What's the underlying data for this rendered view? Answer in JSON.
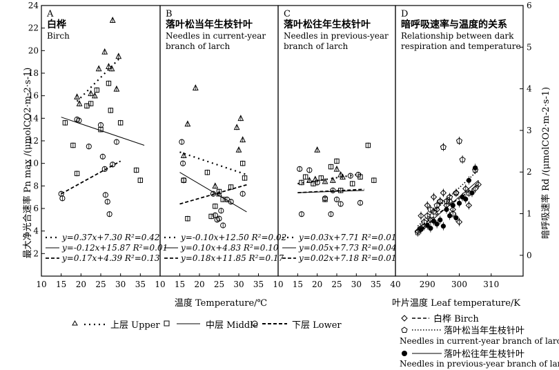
{
  "chart_data": [
    {
      "type": "scatter",
      "letter": "A",
      "title": "白桦",
      "subtitle": [
        "Birch"
      ],
      "xlim": [
        10,
        40
      ],
      "ylim": [
        0,
        24
      ],
      "series": [
        {
          "name": "Upper",
          "marker": "triangle",
          "points": [
            [
              19,
              15.9
            ],
            [
              19.6,
              15.3
            ],
            [
              22.5,
              16.2
            ],
            [
              23.5,
              16
            ],
            [
              24.5,
              18.4
            ],
            [
              26,
              19.9
            ],
            [
              27,
              18.6
            ],
            [
              27.8,
              18.4
            ],
            [
              28,
              22.7
            ],
            [
              29,
              16.6
            ],
            [
              29.5,
              19.5
            ]
          ]
        },
        {
          "name": "Middle",
          "marker": "square",
          "points": [
            [
              16,
              13.6
            ],
            [
              18,
              11.6
            ],
            [
              19,
              9.1
            ],
            [
              21.5,
              15.1
            ],
            [
              22.5,
              15.3
            ],
            [
              24,
              16.5
            ],
            [
              25,
              13
            ],
            [
              27,
              17.1
            ],
            [
              27.5,
              14.7
            ],
            [
              30,
              13.6
            ],
            [
              34,
              9.4
            ],
            [
              35,
              8.5
            ]
          ]
        },
        {
          "name": "Lower",
          "marker": "circle",
          "points": [
            [
              15,
              7.3
            ],
            [
              15.3,
              6.9
            ],
            [
              19,
              13.9
            ],
            [
              19.5,
              13.8
            ],
            [
              22,
              11.5
            ],
            [
              25,
              13.4
            ],
            [
              25.5,
              10.6
            ],
            [
              26,
              9.5
            ],
            [
              26.2,
              7.2
            ],
            [
              26.7,
              6.6
            ],
            [
              27.2,
              5.5
            ],
            [
              28,
              9.9
            ],
            [
              29,
              11.9
            ]
          ]
        }
      ],
      "fits": [
        {
          "series": "Upper",
          "slope": 0.37,
          "intercept": 7.3,
          "r2": 0.42,
          "xrange": [
            19,
            30
          ]
        },
        {
          "series": "Middle",
          "slope": -0.12,
          "intercept": 15.87,
          "r2": 0.01,
          "xrange": [
            15,
            36
          ]
        },
        {
          "series": "Lower",
          "slope": 0.17,
          "intercept": 4.39,
          "r2": 0.13,
          "xrange": [
            15,
            30
          ]
        }
      ]
    },
    {
      "type": "scatter",
      "letter": "B",
      "title": "落叶松当年生枝针叶",
      "subtitle": [
        "Needles in current-year",
        "branch of larch"
      ],
      "xlim": [
        10,
        40
      ],
      "ylim": [
        0,
        24
      ],
      "series": [
        {
          "name": "Upper",
          "marker": "triangle",
          "points": [
            [
              16,
              10.7
            ],
            [
              17,
              13.5
            ],
            [
              19,
              16.7
            ],
            [
              24,
              8
            ],
            [
              25,
              7.3
            ],
            [
              29.5,
              13.2
            ],
            [
              30,
              11.2
            ],
            [
              30.5,
              14
            ],
            [
              31,
              12.1
            ]
          ]
        },
        {
          "name": "Middle",
          "marker": "square",
          "points": [
            [
              16,
              8.5
            ],
            [
              17,
              5.1
            ],
            [
              22,
              9.2
            ],
            [
              23,
              5.3
            ],
            [
              24,
              6.2
            ],
            [
              25,
              7.5
            ],
            [
              26,
              6.8
            ],
            [
              28,
              7.9
            ],
            [
              31,
              10
            ],
            [
              31.5,
              8.7
            ]
          ]
        },
        {
          "name": "Lower",
          "marker": "circle",
          "points": [
            [
              15.5,
              11.9
            ],
            [
              15.8,
              10
            ],
            [
              16,
              8.5
            ],
            [
              23.5,
              7.3
            ],
            [
              24,
              5.4
            ],
            [
              24.5,
              5
            ],
            [
              25,
              5.1
            ],
            [
              25.5,
              5.8
            ],
            [
              26,
              4.5
            ],
            [
              27,
              6.8
            ],
            [
              28,
              6.6
            ],
            [
              31,
              7.3
            ]
          ]
        }
      ],
      "fits": [
        {
          "series": "Upper",
          "slope": -0.1,
          "intercept": 12.5,
          "r2": 0.02,
          "xrange": [
            15,
            32
          ]
        },
        {
          "series": "Middle",
          "slope": 0.1,
          "intercept": 4.83,
          "r2": 0.1,
          "xrange": [
            15,
            32
          ]
        },
        {
          "series": "Lower",
          "slope": 0.18,
          "intercept": 11.85,
          "r2": 0.17,
          "xrange": [
            15,
            32
          ]
        }
      ]
    },
    {
      "type": "scatter",
      "letter": "C",
      "title": "落叶松往年生枝针叶",
      "subtitle": [
        "Needles in previous-year",
        "branch of larch"
      ],
      "xlim": [
        10,
        40
      ],
      "ylim": [
        0,
        24
      ],
      "series": [
        {
          "name": "Upper",
          "marker": "triangle",
          "points": [
            [
              18,
              8.5
            ],
            [
              19.5,
              8.6
            ],
            [
              20,
              11.2
            ],
            [
              22,
              8.4
            ],
            [
              24,
              8.5
            ],
            [
              25,
              9.5
            ],
            [
              26,
              9
            ],
            [
              26.5,
              8.8
            ]
          ]
        },
        {
          "name": "Middle",
          "marker": "square",
          "points": [
            [
              16,
              8.3
            ],
            [
              17,
              8.8
            ],
            [
              19,
              8.2
            ],
            [
              21,
              8.7
            ],
            [
              22,
              6.8
            ],
            [
              23.5,
              9.7
            ],
            [
              25,
              10.2
            ],
            [
              26,
              7.6
            ],
            [
              29,
              8.2
            ],
            [
              31,
              8.8
            ],
            [
              33,
              11.6
            ],
            [
              34.5,
              8.5
            ]
          ]
        },
        {
          "name": "Lower",
          "marker": "circle",
          "points": [
            [
              15.5,
              9.5
            ],
            [
              16,
              5.5
            ],
            [
              18,
              9.4
            ],
            [
              20,
              8.3
            ],
            [
              22,
              6.9
            ],
            [
              23.5,
              5.5
            ],
            [
              24,
              7.6
            ],
            [
              25,
              6.8
            ],
            [
              26,
              6.4
            ],
            [
              28.5,
              8.9
            ],
            [
              30.5,
              9
            ],
            [
              31,
              6.5
            ]
          ]
        }
      ],
      "fits": [
        {
          "series": "Upper",
          "slope": 0.03,
          "intercept": 7.71,
          "r2": 0.01,
          "xrange": [
            15,
            32
          ]
        },
        {
          "series": "Middle",
          "slope": 0.05,
          "intercept": 7.73,
          "r2": 0.04,
          "xrange": [
            15,
            32
          ]
        },
        {
          "series": "Lower",
          "slope": 0.02,
          "intercept": 7.18,
          "r2": 0.01,
          "xrange": [
            15,
            32
          ]
        }
      ]
    },
    {
      "type": "scatter",
      "letter": "D",
      "title": "暗呼吸速率与温度的关系",
      "subtitle": [
        "Relationship between dark",
        "respiration and temperature"
      ],
      "xlim": [
        280,
        320
      ],
      "ylim": [
        -0.5,
        6
      ],
      "series": [
        {
          "name": "白桦 Birch",
          "marker": "diamond",
          "points": [
            [
              287,
              0.58
            ],
            [
              288,
              0.95
            ],
            [
              289,
              0.7
            ],
            [
              290,
              1.2
            ],
            [
              291,
              0.85
            ],
            [
              292,
              1.4
            ],
            [
              293,
              1.1
            ],
            [
              294,
              1.3
            ],
            [
              295,
              1.5
            ],
            [
              296,
              1.2
            ],
            [
              297,
              1.3
            ],
            [
              298,
              1.1
            ],
            [
              299,
              1.5
            ],
            [
              300,
              0.8
            ],
            [
              302,
              1.6
            ],
            [
              303,
              1.2
            ],
            [
              305,
              1.6
            ],
            [
              306,
              1.7
            ]
          ]
        },
        {
          "name": "落叶松当年生枝针叶",
          "marker": "pentagon",
          "points": [
            [
              287,
              0.55
            ],
            [
              288,
              0.65
            ],
            [
              289,
              0.8
            ],
            [
              290,
              0.95
            ],
            [
              291,
              1.1
            ],
            [
              292,
              1.05
            ],
            [
              293,
              1.2
            ],
            [
              294,
              1.3
            ],
            [
              295,
              2.6
            ],
            [
              296,
              1.3
            ],
            [
              297,
              1.4
            ],
            [
              298,
              1.0
            ],
            [
              299,
              1.5
            ],
            [
              300,
              2.75
            ],
            [
              301,
              2.3
            ],
            [
              303,
              1.5
            ],
            [
              305,
              2.05
            ]
          ]
        },
        {
          "name": "落叶松往年生枝针叶",
          "marker": "filled-circle",
          "points": [
            [
              288,
              0.62
            ],
            [
              290,
              0.72
            ],
            [
              291,
              0.65
            ],
            [
              292,
              0.82
            ],
            [
              293,
              0.75
            ],
            [
              294,
              0.85
            ],
            [
              295,
              0.7
            ],
            [
              296,
              1.1
            ],
            [
              297,
              0.95
            ],
            [
              298,
              1.2
            ],
            [
              299,
              0.9
            ],
            [
              300,
              1.25
            ],
            [
              301,
              1.4
            ],
            [
              302,
              1.35
            ],
            [
              303,
              1.8
            ],
            [
              304,
              1.5
            ],
            [
              305,
              2.1
            ]
          ]
        }
      ],
      "fits": [
        {
          "series": "白桦 Birch",
          "style": "dashed",
          "xrange": [
            287,
            306
          ],
          "yrange": [
            0.65,
            1.7
          ]
        },
        {
          "series": "落叶松当年生枝针叶",
          "style": "dotted",
          "xrange": [
            287,
            306
          ],
          "yrange": [
            0.7,
            2.05
          ]
        },
        {
          "series": "落叶松往年生枝针叶",
          "style": "solid",
          "xrange": [
            287,
            306
          ],
          "yrange": [
            0.55,
            1.8
          ]
        }
      ]
    }
  ],
  "labels": {
    "ylabel_left": "最大净光合速率 Pn max /(μmolCO2·m-2·s-1)",
    "ylabel_right": "暗呼吸速率 Rd /(μmolCO2·m-2·s-1)",
    "xlabel_temp": "温度 Temperature/℃",
    "xlabel_leaf": "叶片温度 Leaf temperature/K"
  },
  "ticks": {
    "left_y": [
      "2",
      "4",
      "6",
      "8",
      "10",
      "12",
      "14",
      "16",
      "18",
      "20",
      "22",
      "24"
    ],
    "right_y": [
      "0",
      "1",
      "2",
      "3",
      "4",
      "5",
      "6"
    ],
    "x_abc": [
      "10",
      "15",
      "20",
      "25",
      "30",
      "35"
    ],
    "x_last": "40",
    "x_d": [
      "290",
      "300",
      "310"
    ]
  },
  "legend_abc": {
    "upper": "上层 Upper",
    "middle": "中层 Middle",
    "lower": "下层 Lower"
  },
  "legend_d": {
    "birch": "白桦 Birch",
    "current": "落叶松当年生枝针叶",
    "current_en": "Needles in current-year branch of larch",
    "previous": "落叶松往年生枝针叶",
    "previous_en": "Needles in previous-year branch of larch"
  }
}
